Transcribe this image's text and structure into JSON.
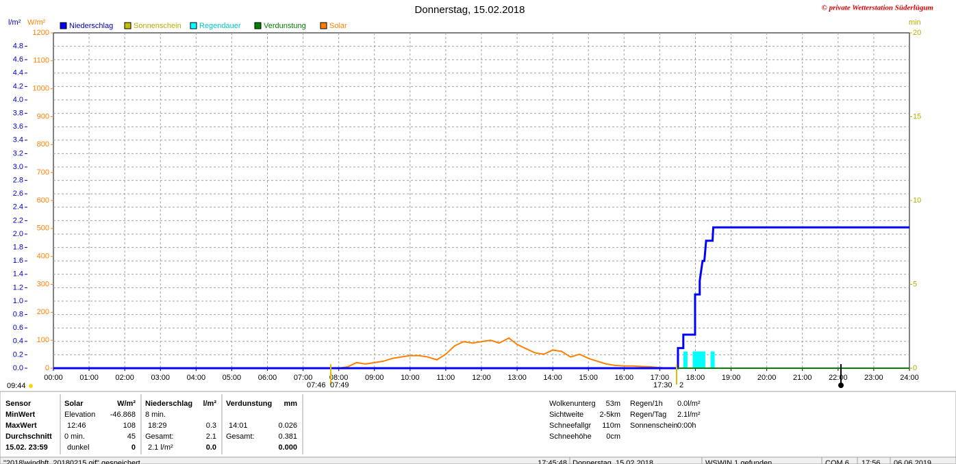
{
  "chart_data": {
    "type": "line",
    "title": "Donnerstag, 15.02.2018",
    "copyright": "© private Wetterstation Süderlügum",
    "ylabel": "l/m²",
    "y2label": "W/m²",
    "y3label": "min",
    "xlim": [
      0,
      24
    ],
    "xticks": [
      {
        "value": 0,
        "label": "00:00"
      },
      {
        "value": 1,
        "label": "01:00"
      },
      {
        "value": 2,
        "label": "02:00"
      },
      {
        "value": 3,
        "label": "03:00"
      },
      {
        "value": 4,
        "label": "04:00"
      },
      {
        "value": 5,
        "label": "05:00"
      },
      {
        "value": 6,
        "label": "06:00"
      },
      {
        "value": 7,
        "label": "07:00"
      },
      {
        "value": 8,
        "label": "08:00"
      },
      {
        "value": 9,
        "label": "09:00"
      },
      {
        "value": 10,
        "label": "10:00"
      },
      {
        "value": 11,
        "label": "11:00"
      },
      {
        "value": 12,
        "label": "12:00"
      },
      {
        "value": 13,
        "label": "13:00"
      },
      {
        "value": 14,
        "label": "14:00"
      },
      {
        "value": 15,
        "label": "15:00"
      },
      {
        "value": 16,
        "label": "16:00"
      },
      {
        "value": 17,
        "label": "17:00"
      },
      {
        "value": 18,
        "label": "18:00"
      },
      {
        "value": 19,
        "label": "19:00"
      },
      {
        "value": 20,
        "label": "20:00"
      },
      {
        "value": 21,
        "label": "21:00"
      },
      {
        "value": 22,
        "label": "22:00"
      },
      {
        "value": 23,
        "label": "23:00"
      },
      {
        "value": 24,
        "label": "24:00"
      }
    ],
    "ylim": [
      0,
      5
    ],
    "yticks": [
      {
        "value": 0,
        "label": "0.0"
      },
      0.2,
      0.4,
      0.6,
      0.8,
      {
        "value": 1,
        "label": "1.0"
      },
      1.2,
      1.4,
      1.6,
      1.8,
      {
        "value": 2,
        "label": "2.0"
      },
      2.2,
      2.4,
      2.6,
      2.8,
      {
        "value": 3,
        "label": "3.0"
      },
      3.2,
      3.4,
      3.6,
      3.8,
      {
        "value": 4,
        "label": "4.0"
      },
      4.2,
      4.4,
      4.6,
      4.8
    ],
    "y2lim": [
      0,
      1200
    ],
    "y2ticks": [
      0,
      100,
      200,
      300,
      400,
      500,
      600,
      700,
      800,
      900,
      1000,
      1100,
      1200
    ],
    "y3lim": [
      0,
      20
    ],
    "y3ticks": [
      0,
      5,
      10,
      15,
      20
    ],
    "grid": true,
    "series": [
      {
        "name": "Niederschlag",
        "color": "#0000ff",
        "text_color": "#0000c0",
        "axis": "y",
        "style": "line",
        "x": [
          0,
          17.51,
          17.51,
          17.66,
          17.66,
          17.99,
          17.99,
          18.12,
          18.12,
          18.2,
          18.25,
          18.3,
          18.48,
          18.5,
          24
        ],
        "values": [
          0,
          0,
          0.3,
          0.3,
          0.5,
          0.5,
          1.1,
          1.1,
          1.3,
          1.6,
          1.6,
          1.9,
          1.9,
          2.1,
          2.1
        ]
      },
      {
        "name": "Sonnenschein",
        "color": "#c0c000",
        "text_color": "#b0b000",
        "axis": "y3",
        "style": "bar",
        "x": [],
        "values": []
      },
      {
        "name": "Regendauer",
        "color": "#00ffff",
        "text_color": "#00c8c8",
        "axis": "y3",
        "style": "bar",
        "x": [
          17.72,
          17.98,
          18.06,
          18.14,
          18.22,
          18.48
        ],
        "values": [
          1,
          1,
          1,
          1,
          1,
          1
        ]
      },
      {
        "name": "Verdunstung",
        "color": "#008000",
        "text_color": "#008000",
        "axis": "y",
        "style": "line",
        "x": [
          17.5,
          24
        ],
        "values": [
          0,
          0
        ]
      },
      {
        "name": "Solar",
        "color": "#ff8000",
        "text_color": "#ff8000",
        "axis": "y2",
        "style": "line",
        "x": [
          0,
          8,
          8.25,
          8.5,
          8.75,
          9,
          9.25,
          9.5,
          9.75,
          10,
          10.25,
          10.5,
          10.75,
          11,
          11.25,
          11.5,
          11.75,
          12,
          12.25,
          12.5,
          12.77,
          13,
          13.25,
          13.5,
          13.75,
          14,
          14.25,
          14.5,
          14.75,
          15,
          15.25,
          15.5,
          15.75,
          16,
          16.25,
          16.5,
          16.75,
          17,
          17.25,
          24
        ],
        "values": [
          0,
          0,
          5,
          20,
          15,
          20,
          25,
          35,
          40,
          45,
          45,
          40,
          30,
          50,
          80,
          95,
          90,
          95,
          100,
          90,
          108,
          85,
          70,
          55,
          50,
          65,
          60,
          40,
          50,
          35,
          25,
          15,
          10,
          8,
          8,
          6,
          5,
          2,
          0,
          0
        ]
      }
    ],
    "annotations": [
      "09:44",
      "07:46",
      "07:49",
      "17:30",
      "2"
    ]
  },
  "stats": {
    "header": [
      "Sensor",
      "Solar",
      "W/m²",
      "Niederschlag",
      "l/m²",
      "Verdunstung",
      "mm"
    ],
    "rows": [
      [
        "MinWert",
        "Elevation",
        "-46.868",
        "8 min.",
        null,
        null,
        null
      ],
      [
        "MaxWert",
        "12:46",
        "108",
        "18:29",
        "0.3",
        "14:01",
        "0.026"
      ],
      [
        "Durchschnitt",
        "0 min.",
        "45",
        "Gesamt:",
        "2.1",
        "Gesamt:",
        "0.381"
      ],
      [
        "15.02. 23:59",
        "dunkel",
        "0",
        "2.1 l/m²",
        "0.0",
        null,
        "0.000"
      ]
    ],
    "conditions": [
      [
        "Wolkenunterg",
        "53m"
      ],
      [
        "Sichtweite",
        "2-5km"
      ],
      [
        "Schneefallgr",
        "110m"
      ],
      [
        "Schneehöhe",
        "0cm"
      ]
    ],
    "rain": [
      [
        "Regen/1h",
        "0.0l/m²"
      ],
      [
        "Regen/Tag",
        "2.1l/m²"
      ],
      [
        "Sonnenschein",
        "0:00h"
      ]
    ]
  },
  "status_bar": [
    "\"2018\\windbft_20180215.gif\" gespeichert",
    "17:45:48",
    "Donnerstag, 15.02.2018",
    "WSWIN 1 gefunden",
    "COM 6",
    "17:56",
    "06.06.2019"
  ]
}
